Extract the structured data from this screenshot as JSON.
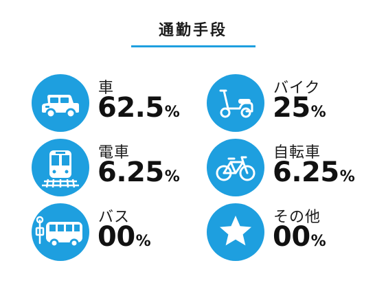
{
  "title": "通勤手段",
  "colors": {
    "accent": "#1e9fdf",
    "text": "#1a1a1a"
  },
  "items": [
    {
      "label": "車",
      "value": "62.5",
      "unit": "%",
      "icon": "car-icon"
    },
    {
      "label": "バイク",
      "value": "25",
      "unit": "%",
      "icon": "motor-scooter-icon"
    },
    {
      "label": "電車",
      "value": "6.25",
      "unit": "%",
      "icon": "train-icon"
    },
    {
      "label": "自転車",
      "value": "6.25",
      "unit": "%",
      "icon": "bicycle-icon"
    },
    {
      "label": "バス",
      "value": "00",
      "unit": "%",
      "icon": "bus-icon"
    },
    {
      "label": "その他",
      "value": "00",
      "unit": "%",
      "icon": "star-icon"
    }
  ]
}
